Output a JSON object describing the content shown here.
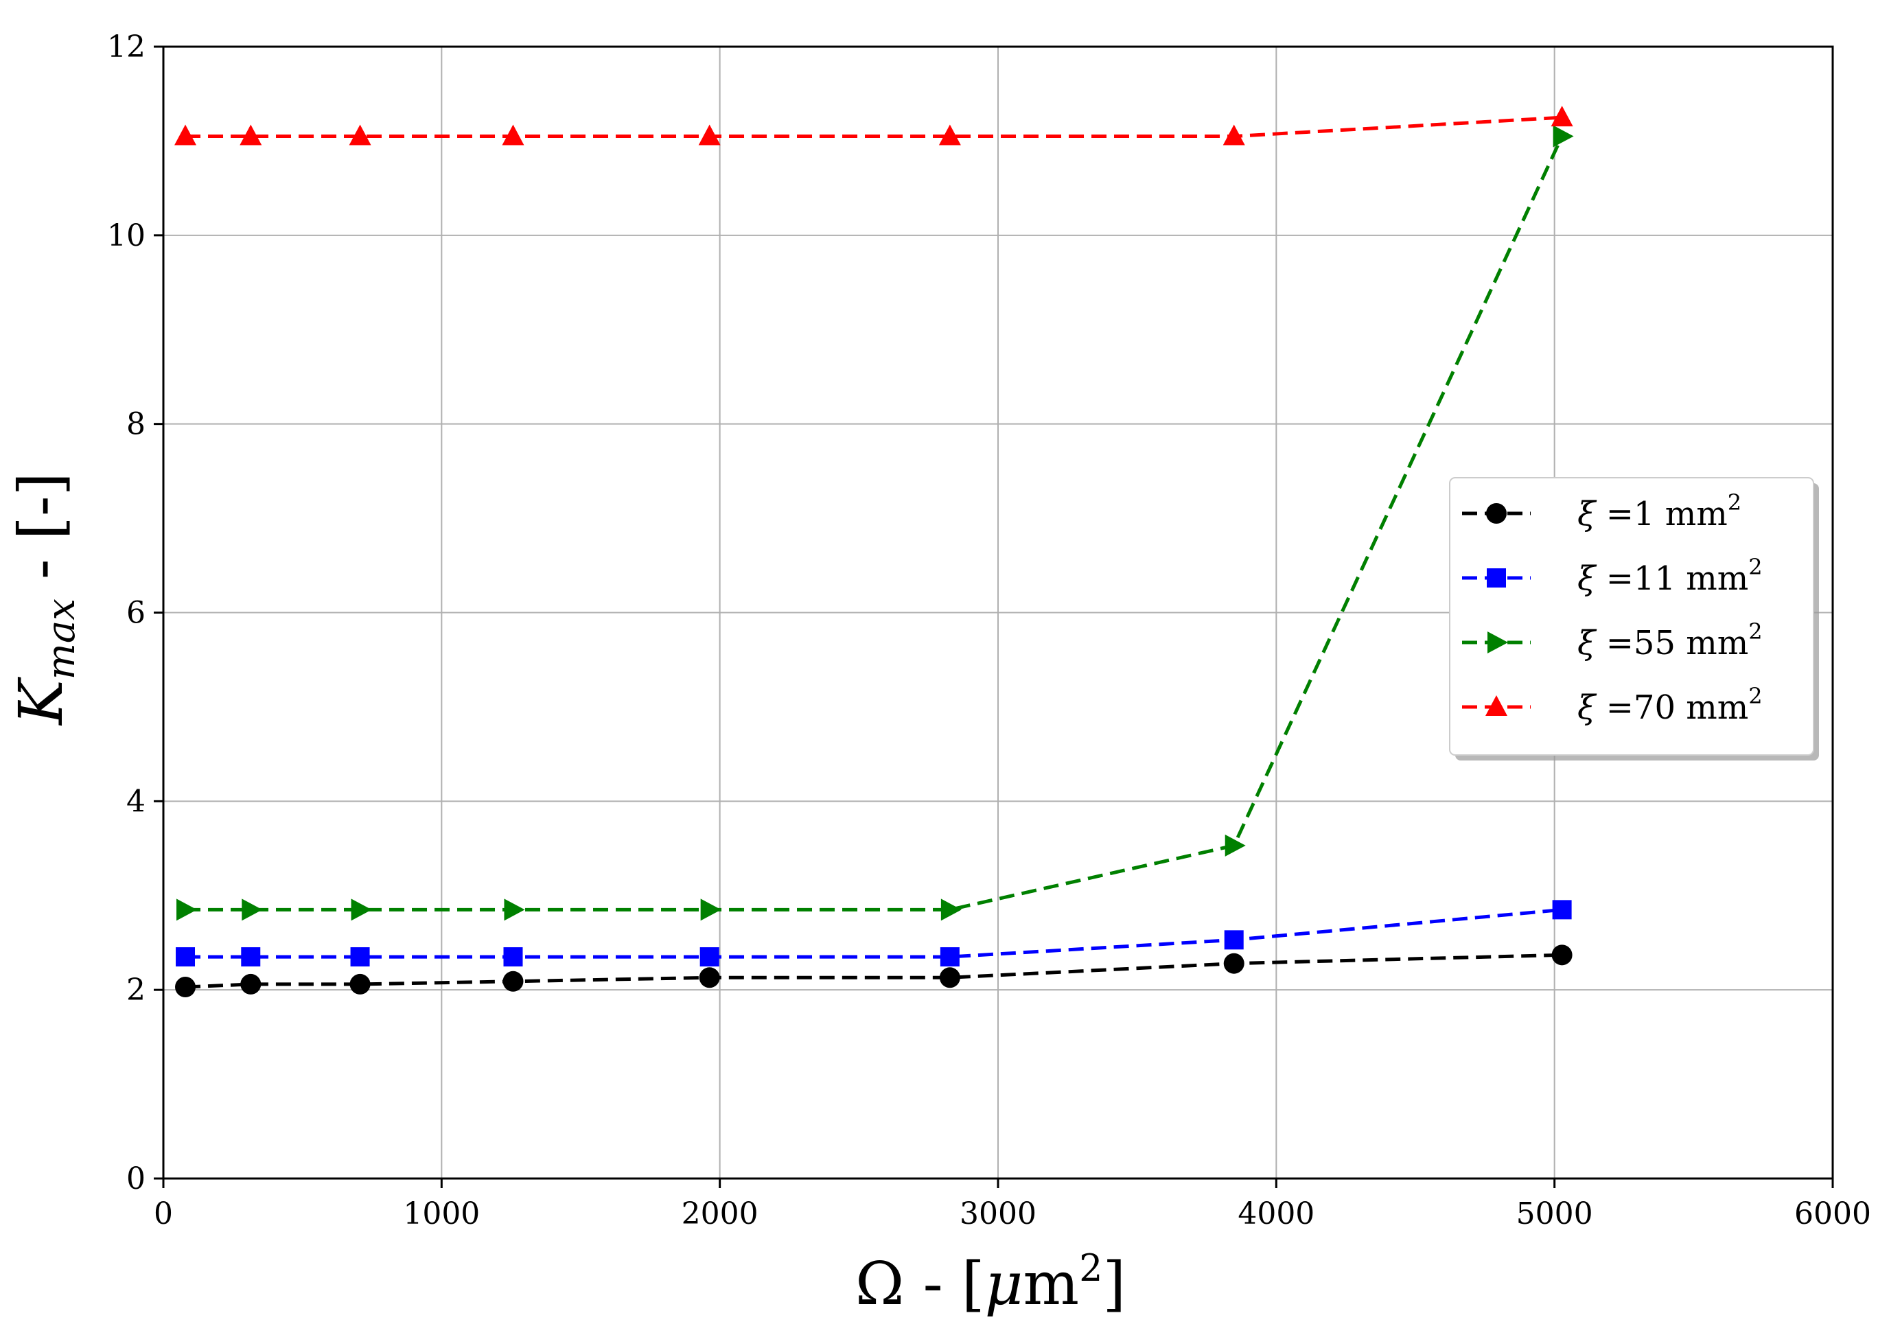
{
  "chart_data": {
    "type": "line",
    "title": "",
    "xlabel": {
      "symbol": "Ω",
      "suffix": " - [",
      "unit_prefix": "μ",
      "unit": "m",
      "unit_exp": "2",
      "close": "]"
    },
    "ylabel": {
      "symbol": "K",
      "subscript": "max",
      "suffix": " - [-]"
    },
    "xlim": [
      0,
      6000
    ],
    "ylim": [
      0,
      12
    ],
    "xticks": [
      0,
      1000,
      2000,
      3000,
      4000,
      5000,
      6000
    ],
    "yticks": [
      0,
      2,
      4,
      6,
      8,
      10,
      12
    ],
    "grid": true,
    "legend_position": "center-right",
    "x": [
      79,
      314,
      707,
      1257,
      1963,
      2827,
      3848,
      5027
    ],
    "series": [
      {
        "name": "ξ =1 mm2",
        "label": {
          "symbol": "ξ",
          "eq": " =",
          "value": "1",
          "unit": " mm",
          "exp": "2"
        },
        "color": "#000000",
        "marker": "circle",
        "values": [
          2.03,
          2.06,
          2.06,
          2.09,
          2.13,
          2.13,
          2.28,
          2.37
        ]
      },
      {
        "name": "ξ =11 mm2",
        "label": {
          "symbol": "ξ",
          "eq": " =",
          "value": "11",
          "unit": " mm",
          "exp": "2"
        },
        "color": "#0000ff",
        "marker": "square",
        "values": [
          2.35,
          2.35,
          2.35,
          2.35,
          2.35,
          2.35,
          2.53,
          2.85
        ]
      },
      {
        "name": "ξ =55 mm2",
        "label": {
          "symbol": "ξ",
          "eq": " =",
          "value": "55",
          "unit": " mm",
          "exp": "2"
        },
        "color": "#008000",
        "marker": "triangle-right",
        "values": [
          2.85,
          2.85,
          2.85,
          2.85,
          2.85,
          2.85,
          3.53,
          11.05
        ]
      },
      {
        "name": "ξ =70 mm2",
        "label": {
          "symbol": "ξ",
          "eq": " =",
          "value": "70",
          "unit": " mm",
          "exp": "2"
        },
        "color": "#ff0000",
        "marker": "triangle-up",
        "values": [
          11.05,
          11.05,
          11.05,
          11.05,
          11.05,
          11.05,
          11.05,
          11.25
        ]
      }
    ]
  }
}
